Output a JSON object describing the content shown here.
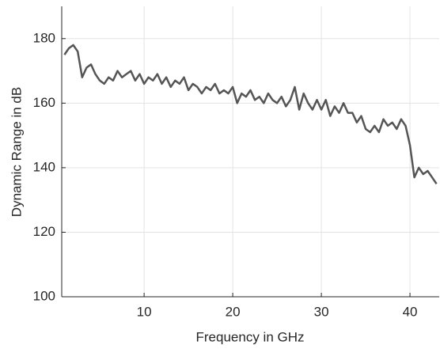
{
  "chart_data": {
    "type": "line",
    "xlabel": "Frequency in GHz",
    "ylabel": "Dynamic Range in dB",
    "x": [
      1,
      1.5,
      2,
      2.5,
      3,
      3.5,
      4,
      4.5,
      5,
      5.5,
      6,
      6.5,
      7,
      7.5,
      8,
      8.5,
      9,
      9.5,
      10,
      10.5,
      11,
      11.5,
      12,
      12.5,
      13,
      13.5,
      14,
      14.5,
      15,
      15.5,
      16,
      16.5,
      17,
      17.5,
      18,
      18.5,
      19,
      19.5,
      20,
      20.5,
      21,
      21.5,
      22,
      22.5,
      23,
      23.5,
      24,
      24.5,
      25,
      25.5,
      26,
      26.5,
      27,
      27.5,
      28,
      28.5,
      29,
      29.5,
      30,
      30.5,
      31,
      31.5,
      32,
      32.5,
      33,
      33.5,
      34,
      34.5,
      35,
      35.5,
      36,
      36.5,
      37,
      37.5,
      38,
      38.5,
      39,
      39.5,
      40,
      40.5,
      41,
      41.5,
      42,
      42.5,
      43
    ],
    "series": [
      {
        "color": "#555555",
        "values": [
          175,
          177,
          178,
          176,
          168,
          171,
          172,
          169,
          167,
          166,
          168,
          167,
          170,
          168,
          169,
          170,
          167,
          169,
          166,
          168,
          167,
          169,
          166,
          168,
          165,
          167,
          166,
          168,
          164,
          166,
          165,
          163,
          165,
          164,
          166,
          163,
          164,
          163,
          165,
          160,
          163,
          162,
          164,
          161,
          162,
          160,
          163,
          161,
          160,
          162,
          159,
          161,
          165,
          158,
          163,
          160,
          158,
          161,
          158,
          161,
          156,
          159,
          157,
          160,
          157,
          157,
          154,
          156,
          152,
          151,
          153,
          151,
          155,
          153,
          154,
          152,
          155,
          153,
          147,
          137,
          140,
          138,
          139,
          137,
          135
        ]
      }
    ],
    "xlim": [
      0.7,
      43.3
    ],
    "xticks": [
      10,
      20,
      30,
      40
    ],
    "ylim": [
      100,
      190
    ],
    "yticks": [
      100,
      120,
      140,
      160,
      180
    ],
    "grid": true
  }
}
